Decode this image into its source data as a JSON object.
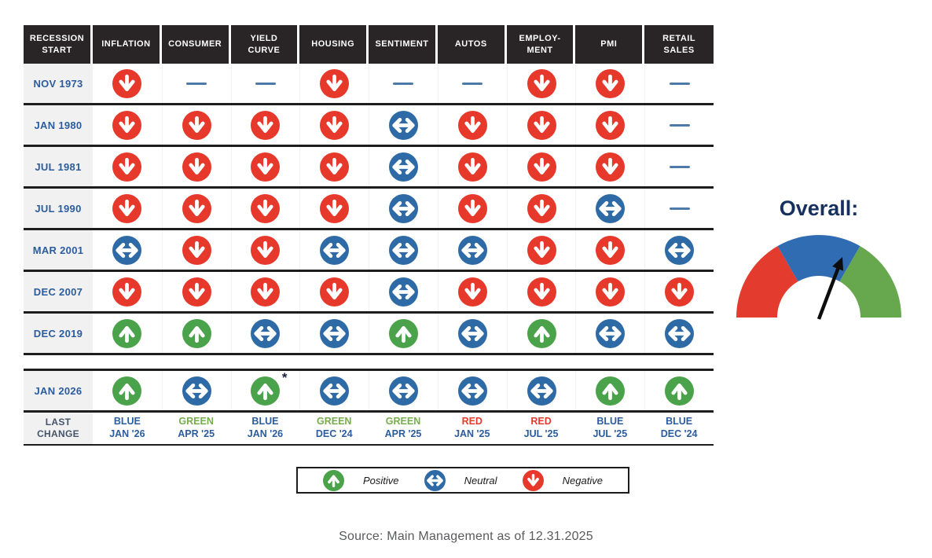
{
  "chart_data": {
    "type": "table",
    "corner_header": "RECESSION\nSTART",
    "columns": [
      "INFLATION",
      "CONSUMER",
      "YIELD\nCURVE",
      "HOUSING",
      "SENTIMENT",
      "AUTOS",
      "EMPLOY-\nMENT",
      "PMI",
      "RETAIL\nSALES"
    ],
    "rows": [
      {
        "label": "NOV 1973",
        "values": [
          "negative",
          "none",
          "none",
          "negative",
          "none",
          "none",
          "negative",
          "negative",
          "none"
        ]
      },
      {
        "label": "JAN 1980",
        "values": [
          "negative",
          "negative",
          "negative",
          "negative",
          "neutral",
          "negative",
          "negative",
          "negative",
          "none"
        ]
      },
      {
        "label": "JUL 1981",
        "values": [
          "negative",
          "negative",
          "negative",
          "negative",
          "neutral",
          "negative",
          "negative",
          "negative",
          "none"
        ]
      },
      {
        "label": "JUL 1990",
        "values": [
          "negative",
          "negative",
          "negative",
          "negative",
          "neutral",
          "negative",
          "negative",
          "neutral",
          "none"
        ]
      },
      {
        "label": "MAR 2001",
        "values": [
          "neutral",
          "negative",
          "negative",
          "neutral",
          "neutral",
          "neutral",
          "negative",
          "negative",
          "neutral"
        ]
      },
      {
        "label": "DEC 2007",
        "values": [
          "negative",
          "negative",
          "negative",
          "negative",
          "neutral",
          "negative",
          "negative",
          "negative",
          "negative"
        ]
      },
      {
        "label": "DEC 2019",
        "values": [
          "positive",
          "positive",
          "neutral",
          "neutral",
          "positive",
          "neutral",
          "positive",
          "neutral",
          "neutral"
        ]
      }
    ],
    "current_row": {
      "label": "JAN 2026",
      "values": [
        "positive",
        "neutral",
        "positive",
        "neutral",
        "neutral",
        "neutral",
        "neutral",
        "positive",
        "positive"
      ],
      "footnote_column_index": 2,
      "footnote_marker": "*"
    },
    "last_change_row": {
      "label": "LAST\nCHANGE",
      "values": [
        {
          "status": "BLUE",
          "date": "JAN '26"
        },
        {
          "status": "GREEN",
          "date": "APR '25"
        },
        {
          "status": "BLUE",
          "date": "JAN '26"
        },
        {
          "status": "GREEN",
          "date": "DEC '24"
        },
        {
          "status": "GREEN",
          "date": "APR '25"
        },
        {
          "status": "RED",
          "date": "JAN '25"
        },
        {
          "status": "RED",
          "date": "JUL '25"
        },
        {
          "status": "BLUE",
          "date": "JUL '25"
        },
        {
          "status": "BLUE",
          "date": "DEC '24"
        }
      ]
    }
  },
  "gauge": {
    "title": "Overall:",
    "segment_colors": {
      "negative": "#e33b2d",
      "neutral": "#2f6cb2",
      "positive": "#67a84f"
    },
    "needle_points_to": "neutral, near positive boundary"
  },
  "legend": {
    "items": [
      {
        "type": "positive",
        "label": "Positive"
      },
      {
        "type": "neutral",
        "label": "Neutral"
      },
      {
        "type": "negative",
        "label": "Negative"
      }
    ]
  },
  "source": "Source: Main Management as of 12.31.2025",
  "colors": {
    "positive": "#4aa34a",
    "neutral": "#2e6ba6",
    "negative": "#e6392c",
    "dash": "#4d7aa9"
  }
}
